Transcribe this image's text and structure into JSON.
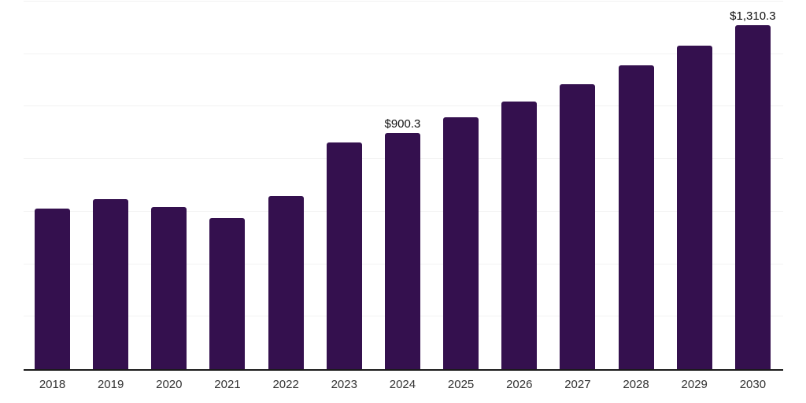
{
  "chart_data": {
    "type": "bar",
    "title": "",
    "xlabel": "",
    "ylabel": "",
    "categories": [
      "2018",
      "2019",
      "2020",
      "2021",
      "2022",
      "2023",
      "2024",
      "2025",
      "2026",
      "2027",
      "2028",
      "2029",
      "2030"
    ],
    "values": [
      611,
      648,
      617,
      577,
      661,
      862,
      900.3,
      958,
      1020,
      1086,
      1156,
      1231,
      1310.3
    ],
    "data_labels": [
      "",
      "",
      "",
      "",
      "",
      "",
      "$900.3",
      "",
      "",
      "",
      "",
      "",
      "$1,310.3"
    ],
    "ylim": [
      0,
      1400
    ],
    "gridline_interval": 200,
    "grid": "horizontal",
    "legend_position": "none",
    "colors": {
      "bar": "#34104E",
      "gridline": "#f2f2f2",
      "axis_line": "#1a1a1a",
      "tick_label": "#333333",
      "data_label": "#111111",
      "background": "#ffffff"
    }
  }
}
